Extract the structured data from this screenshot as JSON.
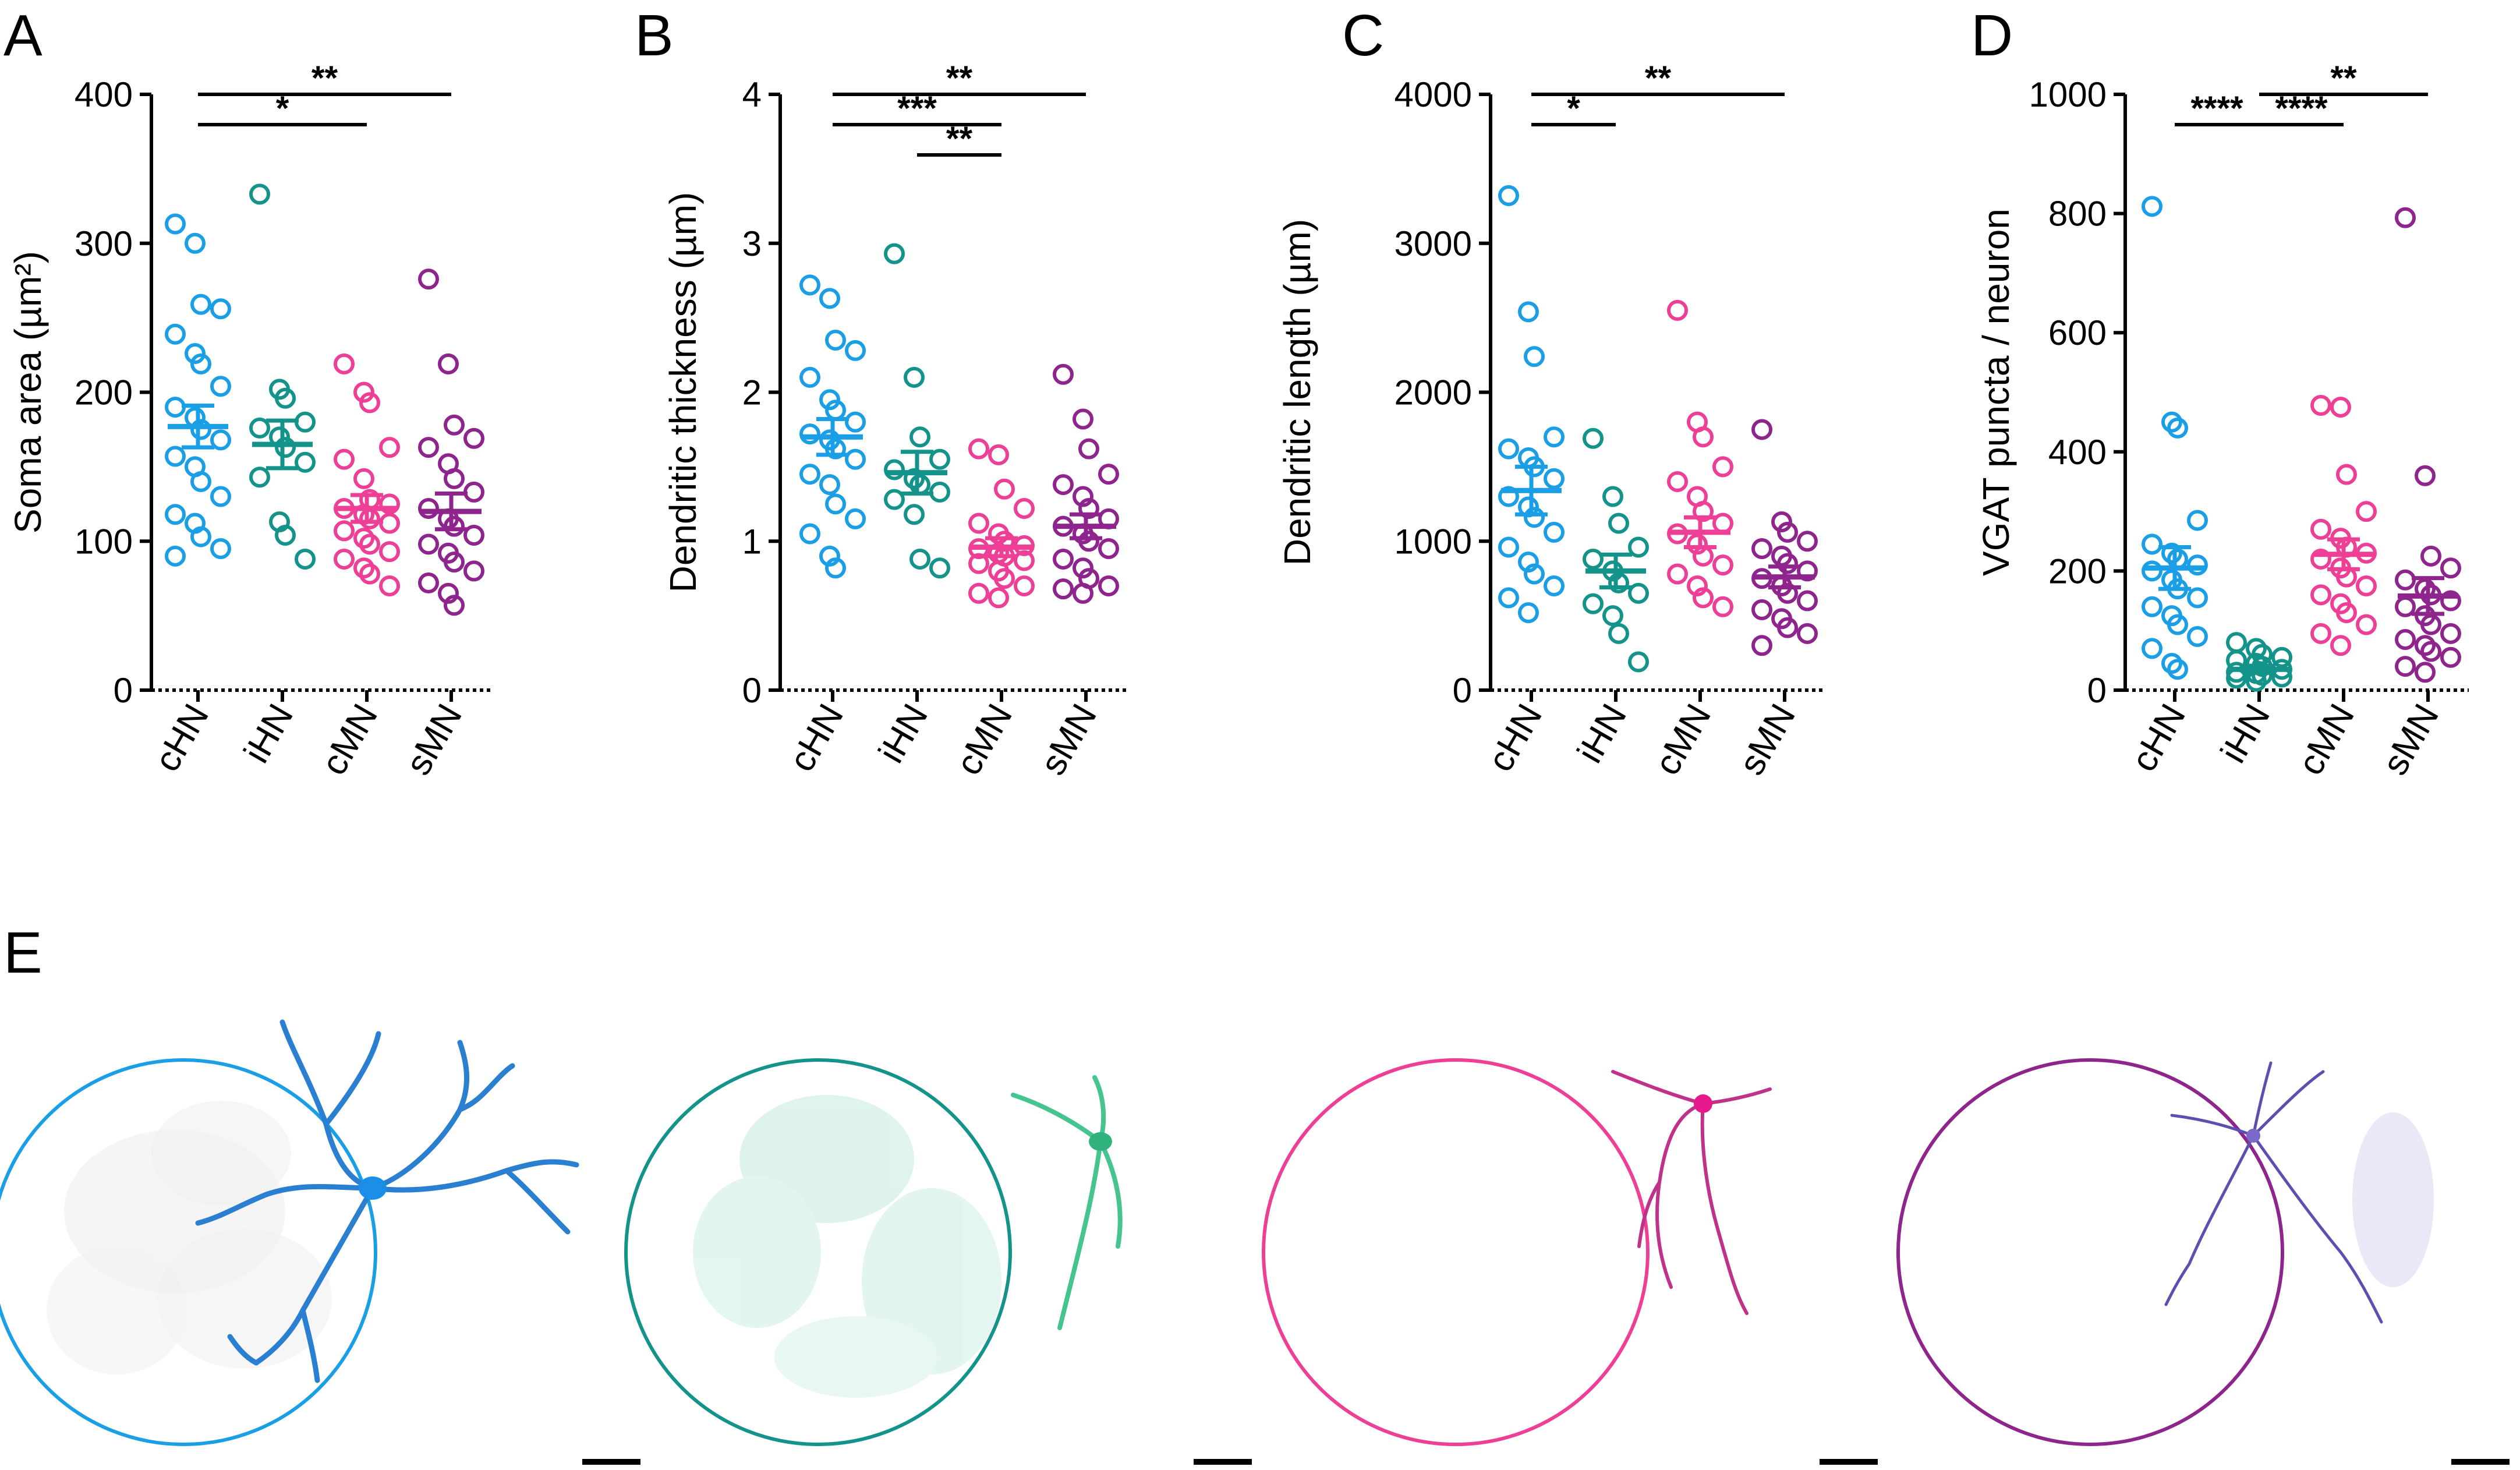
{
  "figure": {
    "panel_e_label": "E",
    "group_colors": {
      "cHN": "#1a9fe6",
      "iHN": "#14938a",
      "cMN": "#ee3f96",
      "sMN": "#8e258d"
    },
    "micrographs": [
      {
        "group": "cHN",
        "color": "#1a9fe6"
      },
      {
        "group": "iHN",
        "color": "#14938a"
      },
      {
        "group": "cMN",
        "color": "#ee3f96"
      },
      {
        "group": "sMN",
        "color": "#8e258d"
      }
    ]
  },
  "chart_data": [
    {
      "panel": "A",
      "type": "scatter",
      "ylabel": "Soma area (µm²)",
      "ylim": [
        0,
        400
      ],
      "yticks": [
        0,
        100,
        200,
        300,
        400
      ],
      "categories": [
        "cHN",
        "iHN",
        "cMN",
        "sMN"
      ],
      "series": [
        {
          "name": "cHN",
          "mean": 177,
          "sem": 14,
          "points": [
            313,
            300,
            259,
            256,
            239,
            226,
            219,
            204,
            190,
            183,
            175,
            168,
            157,
            150,
            140,
            130,
            118,
            112,
            103,
            95,
            90
          ]
        },
        {
          "name": "iHN",
          "mean": 165,
          "sem": 16,
          "points": [
            333,
            202,
            196,
            180,
            176,
            170,
            163,
            153,
            143,
            113,
            104,
            88
          ]
        },
        {
          "name": "cMN",
          "mean": 122,
          "sem": 9,
          "points": [
            219,
            200,
            193,
            163,
            155,
            142,
            128,
            125,
            122,
            118,
            115,
            112,
            107,
            102,
            98,
            93,
            88,
            82,
            78,
            70
          ]
        },
        {
          "name": "sMN",
          "mean": 120,
          "sem": 12,
          "points": [
            276,
            219,
            178,
            169,
            163,
            152,
            142,
            133,
            122,
            115,
            110,
            104,
            98,
            92,
            86,
            80,
            72,
            65,
            57
          ]
        }
      ],
      "significance": [
        {
          "from": "cHN",
          "to": "sMN",
          "label": "**",
          "level": 0
        },
        {
          "from": "cHN",
          "to": "cMN",
          "label": "*",
          "level": 1
        }
      ]
    },
    {
      "panel": "B",
      "type": "scatter",
      "ylabel": "Dendritic thickness (µm)",
      "ylim": [
        0,
        4
      ],
      "yticks": [
        0,
        1,
        2,
        3,
        4
      ],
      "categories": [
        "cHN",
        "iHN",
        "cMN",
        "sMN"
      ],
      "series": [
        {
          "name": "cHN",
          "mean": 1.7,
          "sem": 0.12,
          "points": [
            2.72,
            2.63,
            2.35,
            2.28,
            2.1,
            1.95,
            1.88,
            1.8,
            1.72,
            1.68,
            1.62,
            1.55,
            1.45,
            1.38,
            1.25,
            1.15,
            1.05,
            0.9,
            0.82
          ]
        },
        {
          "name": "iHN",
          "mean": 1.46,
          "sem": 0.14,
          "points": [
            2.93,
            2.1,
            1.7,
            1.55,
            1.48,
            1.42,
            1.38,
            1.33,
            1.28,
            1.18,
            0.88,
            0.82
          ]
        },
        {
          "name": "cMN",
          "mean": 0.96,
          "sem": 0.06,
          "points": [
            1.62,
            1.58,
            1.35,
            1.22,
            1.12,
            1.05,
            1.0,
            0.97,
            0.95,
            0.92,
            0.9,
            0.87,
            0.85,
            0.8,
            0.75,
            0.7,
            0.65,
            0.62
          ]
        },
        {
          "name": "sMN",
          "mean": 1.1,
          "sem": 0.08,
          "points": [
            2.12,
            1.82,
            1.62,
            1.45,
            1.38,
            1.3,
            1.22,
            1.15,
            1.1,
            1.05,
            1.0,
            0.95,
            0.88,
            0.82,
            0.75,
            0.7,
            0.68,
            0.65
          ]
        }
      ],
      "significance": [
        {
          "from": "cHN",
          "to": "sMN",
          "label": "**",
          "level": 0
        },
        {
          "from": "cHN",
          "to": "cMN",
          "label": "***",
          "level": 1
        },
        {
          "from": "iHN",
          "to": "cMN",
          "label": "**",
          "level": 2
        }
      ]
    },
    {
      "panel": "C",
      "type": "scatter",
      "ylabel": "Dendritic length (µm)",
      "ylim": [
        0,
        4000
      ],
      "yticks": [
        0,
        1000,
        2000,
        3000,
        4000
      ],
      "categories": [
        "cHN",
        "iHN",
        "cMN",
        "sMN"
      ],
      "series": [
        {
          "name": "cHN",
          "mean": 1340,
          "sem": 160,
          "points": [
            3320,
            2540,
            2240,
            1700,
            1620,
            1560,
            1500,
            1420,
            1300,
            1230,
            1160,
            1060,
            960,
            860,
            780,
            700,
            620,
            520
          ]
        },
        {
          "name": "iHN",
          "mean": 800,
          "sem": 110,
          "points": [
            1690,
            1300,
            1120,
            960,
            880,
            800,
            720,
            650,
            580,
            500,
            380,
            190
          ]
        },
        {
          "name": "cMN",
          "mean": 1060,
          "sem": 100,
          "points": [
            2550,
            1800,
            1700,
            1500,
            1400,
            1300,
            1200,
            1120,
            1050,
            980,
            900,
            840,
            780,
            700,
            620,
            560
          ]
        },
        {
          "name": "sMN",
          "mean": 760,
          "sem": 70,
          "points": [
            1750,
            1130,
            1060,
            1000,
            950,
            900,
            850,
            800,
            750,
            700,
            650,
            600,
            540,
            480,
            420,
            380,
            300
          ]
        }
      ],
      "significance": [
        {
          "from": "cHN",
          "to": "sMN",
          "label": "**",
          "level": 0
        },
        {
          "from": "cHN",
          "to": "iHN",
          "label": "*",
          "level": 1
        }
      ]
    },
    {
      "panel": "D",
      "type": "scatter",
      "ylabel": "VGAT puncta / neuron",
      "ylim": [
        0,
        1000
      ],
      "yticks": [
        0,
        200,
        400,
        600,
        800,
        1000
      ],
      "categories": [
        "cHN",
        "iHN",
        "cMN",
        "sMN"
      ],
      "series": [
        {
          "name": "cHN",
          "mean": 205,
          "sem": 35,
          "points": [
            812,
            450,
            440,
            285,
            245,
            230,
            220,
            210,
            200,
            185,
            170,
            155,
            140,
            125,
            110,
            90,
            70,
            45,
            35
          ]
        },
        {
          "name": "iHN",
          "mean": 35,
          "sem": 6,
          "points": [
            80,
            70,
            60,
            55,
            50,
            45,
            40,
            35,
            30,
            28,
            25,
            22,
            20,
            15
          ]
        },
        {
          "name": "cMN",
          "mean": 228,
          "sem": 25,
          "points": [
            478,
            475,
            362,
            300,
            270,
            255,
            240,
            230,
            220,
            205,
            190,
            175,
            160,
            145,
            130,
            110,
            95,
            75
          ]
        },
        {
          "name": "sMN",
          "mean": 158,
          "sem": 30,
          "points": [
            793,
            360,
            225,
            205,
            185,
            170,
            160,
            150,
            140,
            125,
            110,
            95,
            85,
            75,
            65,
            55,
            40,
            30
          ]
        }
      ],
      "significance": [
        {
          "from": "iHN",
          "to": "sMN",
          "label": "**",
          "level": 0
        },
        {
          "from": "cHN",
          "to": "iHN",
          "label": "****",
          "level": 1
        },
        {
          "from": "iHN",
          "to": "cMN",
          "label": "****",
          "level": 1
        }
      ]
    }
  ]
}
